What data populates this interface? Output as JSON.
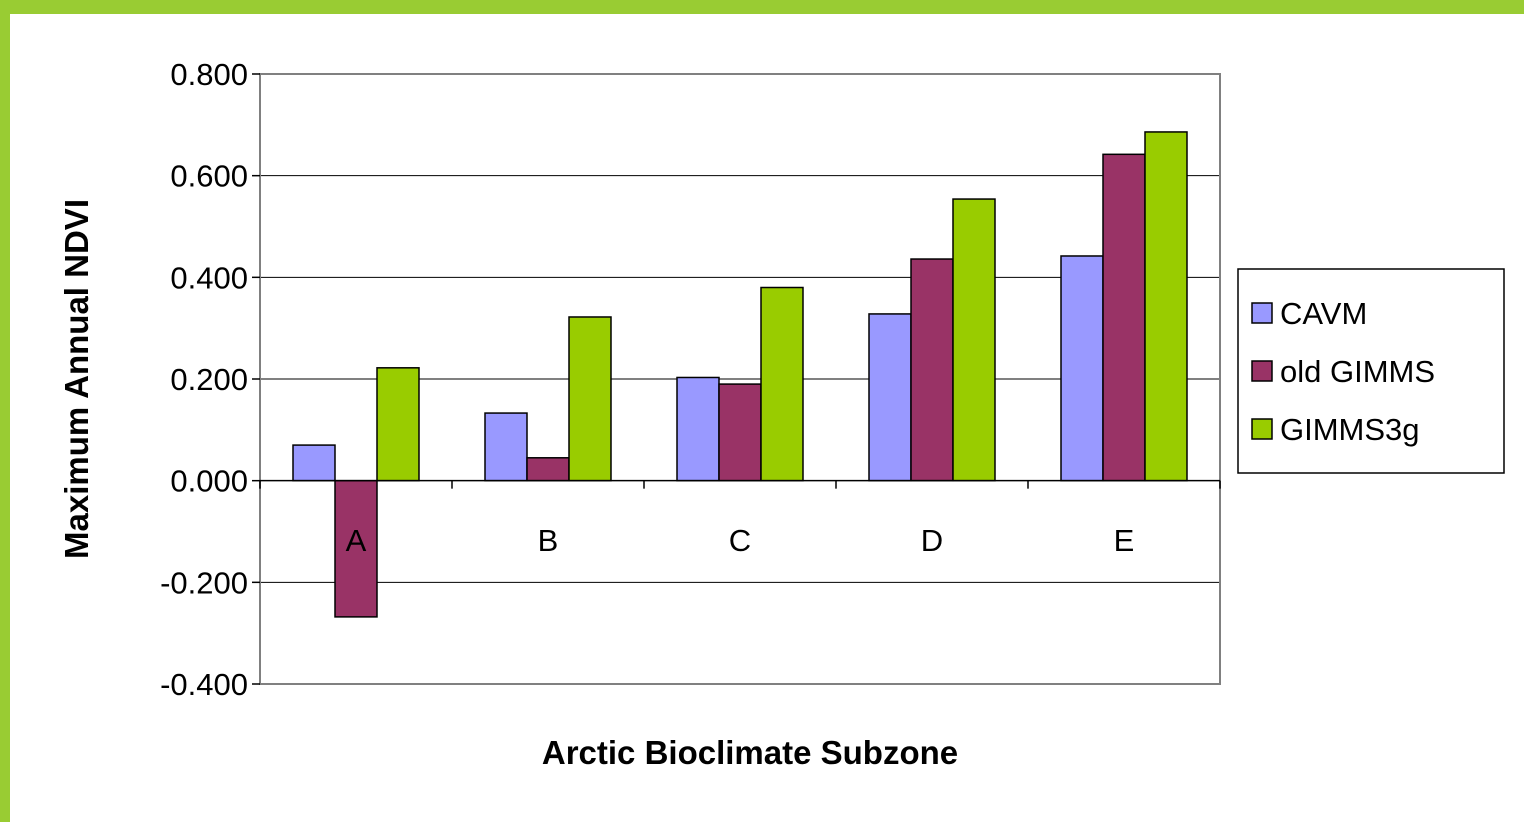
{
  "chart_data": {
    "type": "bar",
    "categories": [
      "A",
      "B",
      "C",
      "D",
      "E"
    ],
    "series": [
      {
        "name": "CAVM",
        "color": "#9999ff",
        "values": [
          0.07,
          0.133,
          0.203,
          0.328,
          0.442
        ]
      },
      {
        "name": "old GIMMS",
        "color": "#993366",
        "values": [
          -0.268,
          0.045,
          0.19,
          0.436,
          0.642
        ]
      },
      {
        "name": "GIMMS3g",
        "color": "#99cc00",
        "values": [
          0.222,
          0.322,
          0.38,
          0.554,
          0.686
        ]
      }
    ],
    "title": "",
    "xlabel": "Arctic Bioclimate Subzone",
    "ylabel": "Maximum Annual NDVI",
    "ylim": [
      -0.4,
      0.8
    ],
    "yticks": [
      "0.800",
      "0.600",
      "0.400",
      "0.200",
      "0.000",
      "-0.200",
      "-0.400"
    ],
    "grid": true,
    "legend_position": "right"
  }
}
